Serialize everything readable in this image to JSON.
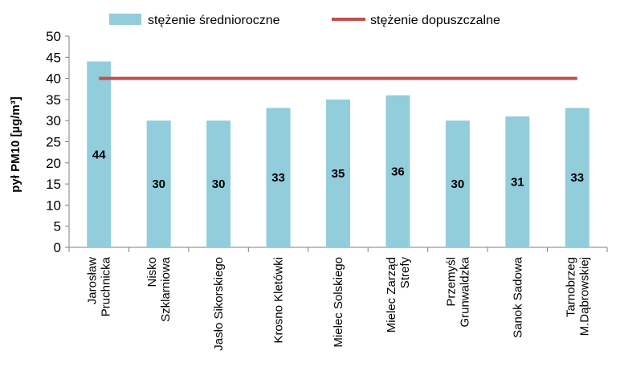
{
  "chart_data": {
    "type": "bar",
    "title": "",
    "xlabel": "",
    "ylabel": "pył PM10 [µg/m³]",
    "ylim": [
      0,
      50
    ],
    "yticks": [
      0,
      5,
      10,
      15,
      20,
      25,
      30,
      35,
      40,
      45,
      50
    ],
    "grid": false,
    "legend_position": "top",
    "categories": [
      [
        "Jarosław",
        "Pruchnicka"
      ],
      [
        "Nisko",
        "Szklarniowa"
      ],
      [
        "Jasło Sikorskiego"
      ],
      [
        "Krosno Kletówki"
      ],
      [
        "Mielec Solskiego"
      ],
      [
        "Mielec Zarząd",
        "Strefy"
      ],
      [
        "Przemyśl",
        "Grunwaldzka"
      ],
      [
        "Sanok Sadowa"
      ],
      [
        "Tarnobrzeg",
        "M.Dąbrowskiej"
      ]
    ],
    "series": [
      {
        "name": "stężenie średnioroczne",
        "kind": "bar",
        "color": "#92cddc",
        "values": [
          44,
          30,
          30,
          33,
          35,
          36,
          30,
          31,
          33
        ]
      },
      {
        "name": "stężenie dopuszczalne",
        "kind": "line",
        "color": "#c0504d",
        "values": [
          40,
          40,
          40,
          40,
          40,
          40,
          40,
          40,
          40
        ]
      }
    ]
  }
}
